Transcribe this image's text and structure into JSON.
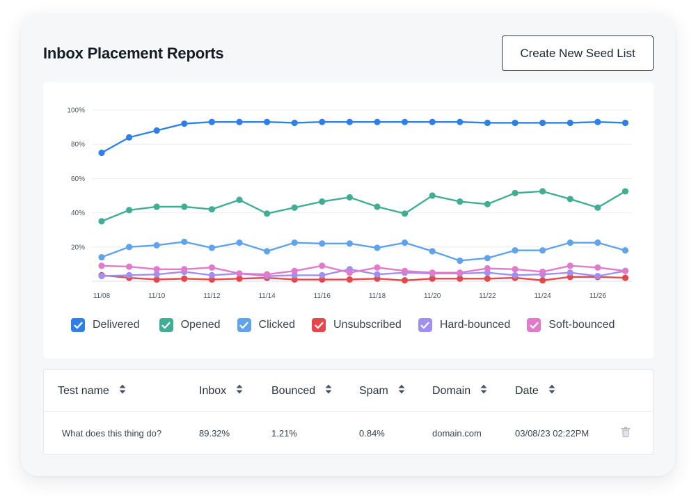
{
  "page": {
    "title": "Inbox Placement Reports",
    "create_button": "Create New Seed List"
  },
  "chart_data": {
    "type": "line",
    "x": [
      "11/08",
      "11/09",
      "11/10",
      "11/11",
      "11/12",
      "11/13",
      "11/14",
      "11/15",
      "11/16",
      "11/17",
      "11/18",
      "11/19",
      "11/20",
      "11/21",
      "11/22",
      "11/23",
      "11/24",
      "11/25",
      "11/26",
      "11/27"
    ],
    "xticks": [
      "11/08",
      "11/10",
      "11/12",
      "11/14",
      "11/16",
      "11/18",
      "11/20",
      "11/22",
      "11/24",
      "11/26"
    ],
    "yticks": [
      "20%",
      "40%",
      "60%",
      "80%",
      "100%"
    ],
    "ylim": [
      0,
      100
    ],
    "grid": true,
    "legend_position": "bottom",
    "series": [
      {
        "name": "Delivered",
        "color": "#2f80e6",
        "values": [
          75,
          84,
          88,
          92,
          93,
          93,
          93,
          92.5,
          93,
          93,
          93,
          93,
          93,
          93,
          92.5,
          92.5,
          92.5,
          92.5,
          93,
          92.5
        ]
      },
      {
        "name": "Opened",
        "color": "#3fae95",
        "values": [
          35,
          41.5,
          43.5,
          43.5,
          42,
          47.5,
          39.5,
          43,
          46.5,
          49,
          43.5,
          39.5,
          50,
          46.5,
          45,
          51.5,
          52.5,
          48,
          43,
          52.5
        ]
      },
      {
        "name": "Clicked",
        "color": "#5fa3ec",
        "values": [
          14,
          20,
          21,
          23,
          19.5,
          22.5,
          17.5,
          22.5,
          22,
          22,
          19.5,
          22.5,
          17.5,
          12,
          13.5,
          18,
          18,
          22.5,
          22.5,
          18
        ]
      },
      {
        "name": "Unsubscribed",
        "color": "#e4484a",
        "values": [
          3.5,
          2,
          1,
          1.5,
          1,
          1.5,
          2,
          1,
          1,
          1,
          1.5,
          0.5,
          1.5,
          1.5,
          1.5,
          2,
          0.5,
          2.5,
          2.5,
          2
        ]
      },
      {
        "name": "Hard-bounced",
        "color": "#a08ef0",
        "values": [
          3,
          3.5,
          4,
          5.5,
          3.5,
          4.5,
          3,
          3.5,
          3.5,
          7,
          4,
          5,
          4.5,
          4.5,
          5,
          3.5,
          4,
          5,
          3,
          6
        ]
      },
      {
        "name": "Soft-bounced",
        "color": "#e27acb",
        "values": [
          9,
          8.5,
          7,
          7,
          8,
          4.5,
          4,
          6,
          9,
          5,
          8,
          6,
          5,
          5,
          7.5,
          7,
          5.5,
          9,
          8,
          6
        ]
      }
    ]
  },
  "table": {
    "headers": [
      "Test name",
      "Inbox",
      "Bounced",
      "Spam",
      "Domain",
      "Date"
    ],
    "rows": [
      {
        "test_name": "What does this thing do?",
        "inbox": "89.32%",
        "bounced": "1.21%",
        "spam": "0.84%",
        "domain": "domain.com",
        "date": "03/08/23 02:22PM"
      }
    ]
  },
  "icons": {
    "sort": "sort-icon",
    "delete": "trash-icon",
    "legend_check": "check-icon"
  }
}
